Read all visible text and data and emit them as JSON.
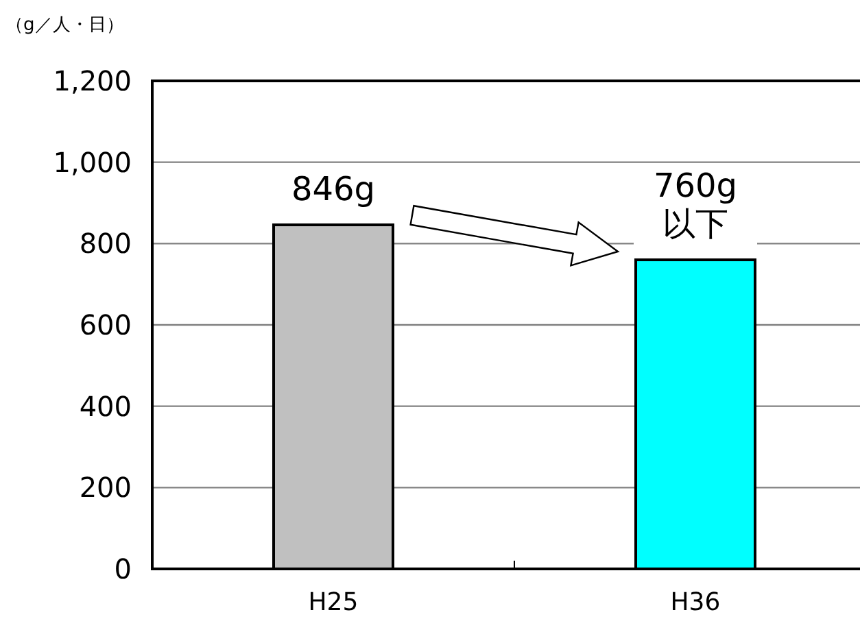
{
  "chart_data": {
    "type": "bar",
    "ylabel": "（g／人・日）",
    "categories": [
      "H25",
      "H36"
    ],
    "values": [
      846,
      760
    ],
    "colors": [
      "#c0c0c0",
      "#00ffff"
    ],
    "value_labels": [
      "846g",
      "760g\n以下"
    ],
    "ylim": [
      0,
      1200
    ],
    "yticks": [
      {
        "value": 0,
        "label": "0"
      },
      {
        "value": 200,
        "label": "200"
      },
      {
        "value": 400,
        "label": "400"
      },
      {
        "value": 600,
        "label": "600"
      },
      {
        "value": 800,
        "label": "800"
      },
      {
        "value": 1000,
        "label": "1,000"
      },
      {
        "value": 1200,
        "label": "1,200"
      }
    ],
    "grid": "y"
  }
}
